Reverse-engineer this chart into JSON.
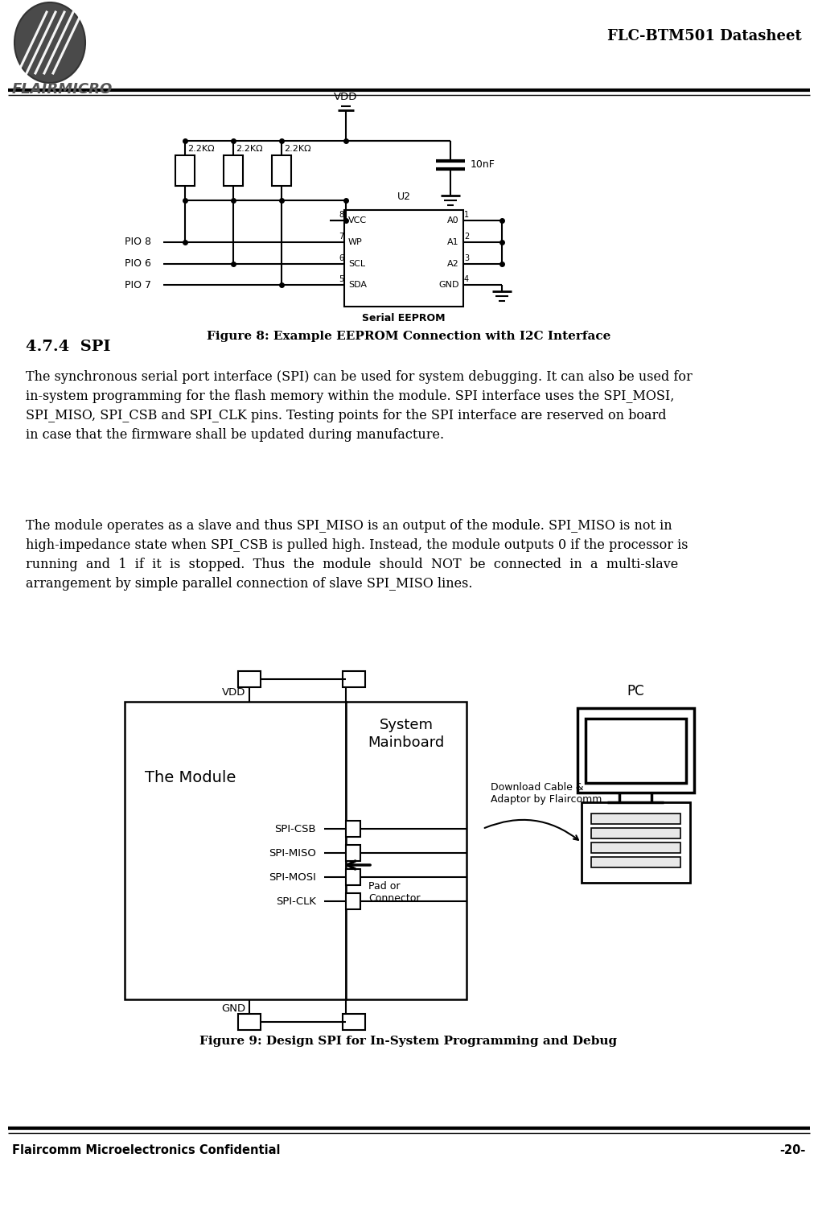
{
  "page_title": "FLC-BTM501 Datasheet",
  "logo_text": "FLAIRMICRO",
  "footer_left": "Flaircomm Microelectronics Confidential",
  "footer_right": "-20-",
  "fig8_caption": "Figure 8: Example EEPROM Connection with I2C Interface",
  "fig9_caption": "Figure 9: Design SPI for In-System Programming and Debug",
  "section_title": "4.7.4  SPI",
  "paragraph1": "The synchronous serial port interface (SPI) can be used for system debugging. It can also be used for\nin-system programming for the flash memory within the module. SPI interface uses the SPI_MOSI,\nSPI_MISO, SPI_CSB and SPI_CLK pins. Testing points for the SPI interface are reserved on board\nin case that the firmware shall be updated during manufacture.",
  "paragraph2": "The module operates as a slave and thus SPI_MISO is an output of the module. SPI_MISO is not in\nhigh-impedance state when SPI_CSB is pulled high. Instead, the module outputs 0 if the processor is\nrunning  and  1  if  it  is  stopped.  Thus  the  module  should  NOT  be  connected  in  a  multi-slave\narrangement by simple parallel connection of slave SPI_MISO lines.",
  "bg_color": "#ffffff",
  "text_color": "#000000",
  "line_color": "#000000"
}
